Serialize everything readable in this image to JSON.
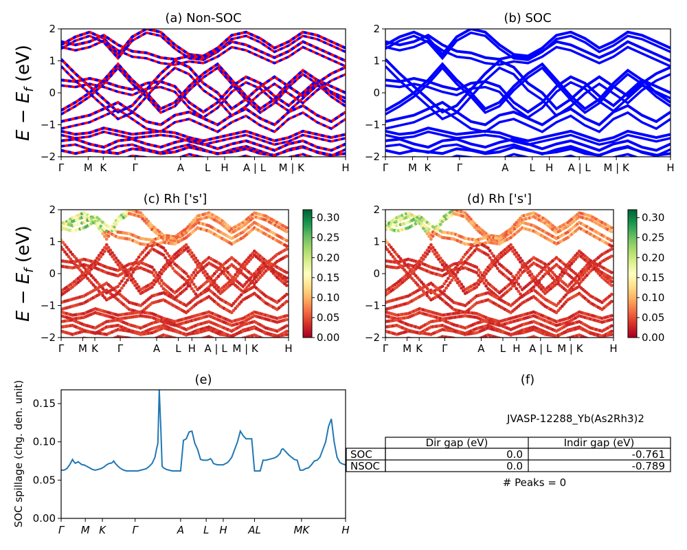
{
  "chart_data": [
    {
      "panel": "a",
      "type": "line",
      "title": "(a) Non-SOC",
      "ylabel": "E - E_f (eV)",
      "ylim": [
        -2,
        2
      ],
      "yticks": [
        "2",
        "1",
        "0",
        "−1",
        "−2"
      ],
      "kpath_labels": [
        "Γ",
        "M",
        "K",
        "Γ",
        "A",
        "L",
        "H",
        "A | L",
        "M | K",
        "H"
      ],
      "series": [
        {
          "name": "",
          "color": "#ff0000",
          "dashed_color": "#0000ff",
          "values": [
            {
              "band": "upper-1",
              "y": [
                1.5,
                1.75,
                1.9,
                1.7,
                1.2,
                1.75,
                2.0,
                1.9,
                1.5,
                1.2,
                1.15,
                1.4,
                1.8,
                1.9,
                1.7,
                1.4,
                1.6,
                1.9,
                1.8,
                1.6,
                1.4
              ]
            },
            {
              "band": "upper-2",
              "y": [
                1.6,
                1.5,
                1.6,
                1.8,
                1.5,
                1.3,
                1.25,
                1.1,
                1.05,
                1.15,
                1.1,
                1.3,
                1.6,
                1.5,
                1.3,
                1.1,
                1.3,
                1.6,
                1.4,
                1.2,
                1.0
              ]
            },
            {
              "band": "cross-1",
              "y": [
                1.05,
                0.6,
                0.2,
                -0.2,
                -0.6,
                -0.4,
                0.1,
                0.6,
                1.0,
                0.8,
                0.3,
                0.0,
                -0.5,
                -0.2,
                0.2,
                0.5,
                0.2,
                -0.1,
                0.3,
                0.6,
                0.8
              ]
            },
            {
              "band": "cross-2",
              "y": [
                -0.55,
                -0.3,
                0.0,
                0.4,
                0.9,
                0.4,
                0.0,
                -0.5,
                -0.3,
                0.2,
                0.6,
                0.9,
                0.4,
                -0.1,
                -0.5,
                -0.2,
                0.3,
                0.7,
                0.4,
                0.0,
                -0.3
              ]
            },
            {
              "band": "mid-1",
              "y": [
                0.4,
                0.35,
                0.45,
                0.35,
                0.2,
                0.1,
                0.3,
                0.35,
                0.2,
                -0.3,
                -0.6,
                -0.3,
                0.2,
                0.5,
                0.3,
                -0.1,
                -0.4,
                0.0,
                0.4,
                0.2,
                0.0
              ]
            },
            {
              "band": "mid-2",
              "y": [
                -0.9,
                -0.8,
                -0.7,
                -0.5,
                -0.3,
                -0.6,
                -0.9,
                -1.0,
                -0.7,
                -0.6,
                -0.8,
                -1.0,
                -0.7,
                -0.5,
                -0.8,
                -1.0,
                -0.6,
                -0.4,
                -0.7,
                -0.9,
                -0.6
              ]
            },
            {
              "band": "low-1",
              "y": [
                -1.2,
                -1.3,
                -1.25,
                -1.1,
                -1.2,
                -1.3,
                -1.25,
                -1.2,
                -1.25,
                -1.4,
                -1.5,
                -1.4,
                -1.3,
                -1.2,
                -1.35,
                -1.5,
                -1.4,
                -1.2,
                -1.3,
                -1.4,
                -1.3
              ]
            },
            {
              "band": "low-2",
              "y": [
                -1.5,
                -1.45,
                -1.6,
                -1.7,
                -1.5,
                -1.45,
                -1.6,
                -1.7,
                -1.55,
                -1.45,
                -1.6,
                -1.75,
                -1.6,
                -1.5,
                -1.65,
                -1.8,
                -1.6,
                -1.5,
                -1.7,
                -1.8,
                -1.6
              ]
            },
            {
              "band": "low-3",
              "y": [
                -1.8,
                -1.9,
                -1.8,
                -1.85,
                -1.9,
                -1.75,
                -1.8,
                -1.9,
                -1.85,
                -1.7,
                -1.8,
                -1.9,
                -1.85,
                -1.75,
                -1.9,
                -1.95,
                -1.8,
                -1.7,
                -1.85,
                -1.95,
                -1.9
              ]
            }
          ]
        }
      ]
    },
    {
      "panel": "b",
      "type": "line",
      "title": "(b) SOC",
      "ylim": [
        -2,
        2
      ],
      "yticks": [
        "2",
        "1",
        "0",
        "−1",
        "−2"
      ],
      "kpath_labels": [
        "Γ",
        "M",
        "K",
        "Γ",
        "A",
        "L",
        "H",
        "A | L",
        "M | K",
        "H"
      ],
      "series": [
        {
          "name": "",
          "color": "#0000ff"
        }
      ]
    },
    {
      "panel": "c",
      "type": "scatter",
      "title": "(c)  Rh ['s']",
      "ylabel": "E - E_f (eV)",
      "ylim": [
        -2,
        2
      ],
      "yticks": [
        "2",
        "1",
        "0",
        "−1",
        "−2"
      ],
      "kpath_labels": [
        "Γ",
        "M",
        "K",
        "Γ",
        "A",
        "L",
        "H",
        "A | L",
        "M | K",
        "H"
      ],
      "colorbar": {
        "min": 0.0,
        "max": 0.32,
        "ticks": [
          "0.00",
          "0.05",
          "0.10",
          "0.15",
          "0.20",
          "0.25",
          "0.30"
        ],
        "colormap": "RdYlGn"
      }
    },
    {
      "panel": "d",
      "type": "scatter",
      "title": "(d) Rh ['s']",
      "ylim": [
        -2,
        2
      ],
      "yticks": [
        "2",
        "1",
        "0",
        "−1",
        "−2"
      ],
      "kpath_labels": [
        "Γ",
        "M",
        "K",
        "Γ",
        "A",
        "L",
        "H",
        "A | L",
        "M | K",
        "H"
      ],
      "colorbar": {
        "min": 0.0,
        "max": 0.32,
        "ticks": [
          "0.00",
          "0.05",
          "0.10",
          "0.15",
          "0.20",
          "0.25",
          "0.30"
        ],
        "colormap": "RdYlGn"
      }
    },
    {
      "panel": "e",
      "type": "line",
      "title": "(e)",
      "ylabel": "SOC spillage (chg. den. unit)",
      "ylim": [
        0,
        0.168
      ],
      "yticks": [
        "0.15",
        "0.10",
        "0.05",
        "0.00"
      ],
      "kpath_labels": [
        "Γ",
        "M",
        "K",
        "Γ",
        "A",
        "L",
        "H",
        "AL",
        "MK",
        "H"
      ],
      "series": [
        {
          "name": "",
          "color": "#1f77b4",
          "x": [
            0,
            2,
            4,
            6,
            8,
            9,
            10,
            11,
            12,
            14,
            15,
            16,
            17,
            18,
            20,
            22,
            24,
            26,
            28,
            30,
            32,
            34,
            35,
            36,
            37,
            38,
            40,
            42,
            44,
            46,
            48,
            50,
            52,
            54,
            56,
            58,
            60,
            62,
            64,
            66,
            67,
            68,
            69,
            70,
            71,
            72,
            74,
            76,
            78,
            80,
            82,
            84,
            86,
            88,
            90,
            92,
            94,
            96,
            98,
            100,
            101,
            102,
            103,
            104,
            105,
            106,
            107,
            108,
            110,
            112,
            114,
            115,
            116,
            117,
            118,
            120,
            122,
            124,
            126,
            128,
            130,
            132,
            134,
            136,
            138,
            140,
            142,
            144,
            146,
            148,
            150,
            152,
            153,
            154,
            155,
            156,
            158,
            160,
            162,
            164,
            166,
            168,
            170,
            172,
            174,
            176,
            178,
            180,
            182,
            184,
            186,
            188,
            190,
            192,
            194,
            196,
            198,
            200
          ],
          "y": [
            0.063,
            0.063,
            0.065,
            0.07,
            0.077,
            0.074,
            0.072,
            0.073,
            0.074,
            0.071,
            0.07,
            0.07,
            0.069,
            0.068,
            0.066,
            0.064,
            0.063,
            0.064,
            0.065,
            0.067,
            0.07,
            0.072,
            0.072,
            0.073,
            0.075,
            0.072,
            0.068,
            0.065,
            0.063,
            0.062,
            0.062,
            0.062,
            0.062,
            0.062,
            0.063,
            0.064,
            0.065,
            0.068,
            0.072,
            0.08,
            0.09,
            0.098,
            0.168,
            0.122,
            0.068,
            0.066,
            0.064,
            0.063,
            0.062,
            0.062,
            0.062,
            0.062,
            0.102,
            0.104,
            0.113,
            0.114,
            0.098,
            0.09,
            0.077,
            0.076,
            0.076,
            0.076,
            0.076,
            0.077,
            0.078,
            0.076,
            0.072,
            0.071,
            0.07,
            0.07,
            0.07,
            0.071,
            0.072,
            0.073,
            0.075,
            0.08,
            0.09,
            0.1,
            0.114,
            0.108,
            0.104,
            0.104,
            0.104,
            0.062,
            0.062,
            0.062,
            0.076,
            0.076,
            0.077,
            0.078,
            0.079,
            0.081,
            0.083,
            0.085,
            0.09,
            0.091,
            0.087,
            0.083,
            0.08,
            0.077,
            0.076,
            0.063,
            0.063,
            0.065,
            0.066,
            0.07,
            0.075,
            0.076,
            0.08,
            0.09,
            0.1,
            0.12,
            0.13,
            0.1,
            0.08,
            0.073,
            0.071,
            0.07
          ]
        }
      ]
    },
    {
      "panel": "f",
      "type": "table",
      "title": "(f)",
      "material": "JVASP-12288_Yb(As2Rh3)2",
      "columns": [
        "Dir gap (eV)",
        "Indir gap (eV)"
      ],
      "rows": [
        {
          "label": "SOC",
          "dir": "0.0",
          "indir": "-0.761"
        },
        {
          "label": "NSOC",
          "dir": "0.0",
          "indir": "-0.789"
        }
      ],
      "footer": "# Peaks = 0"
    }
  ]
}
